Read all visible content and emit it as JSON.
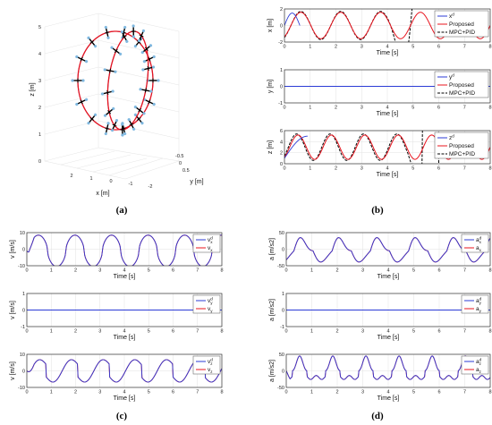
{
  "colors": {
    "reference": "#2b3bd6",
    "proposed": "#e8141e",
    "mpc": "#000000",
    "grid": "#e2e2e2"
  },
  "panel_labels": {
    "a": "(a)",
    "b": "(b)",
    "c": "(c)",
    "d": "(d)"
  },
  "legend_text": {
    "xd": "x",
    "yd": "y",
    "zd": "z",
    "proposed": "Proposed",
    "mpc": "MPC+PID",
    "vxd": "v",
    "vx": "v",
    "vyd": "v",
    "vy": "v",
    "vzd": "v",
    "vz": "v",
    "axd": "a",
    "ax": "a",
    "ayd": "a",
    "ay": "a",
    "azd": "a",
    "az": "a",
    "sup_d": "d",
    "sub_x": "x",
    "sub_y": "y",
    "sub_z": "z"
  },
  "chart_data": [
    {
      "id": "a",
      "type": "scatter",
      "note_3d": "3D trajectory with quadrotor poses",
      "xlabel": "x [m]",
      "ylabel": "y [m]",
      "zlabel": "z [m]",
      "x_ticks": [
        "-2",
        "-1",
        "0",
        "1",
        "2"
      ],
      "y_ticks": [
        "-0.5",
        "0",
        "0.5"
      ],
      "z_ticks": [
        "0",
        "1",
        "2",
        "3",
        "4",
        "5"
      ]
    },
    {
      "id": "b1",
      "type": "line",
      "xlabel": "Time [s]",
      "ylabel": "x [m]",
      "xlim": [
        0,
        8
      ],
      "ylim": [
        -2,
        2
      ],
      "x_ticks": [
        "0",
        "1",
        "2",
        "3",
        "4",
        "5",
        "6",
        "7",
        "8"
      ],
      "y_ticks": [
        "-2",
        "0",
        "2"
      ],
      "series": [
        {
          "name": "x",
          "role": "reference",
          "from": 0,
          "to": 0.6,
          "fn": "xref_start"
        },
        {
          "name": "Proposed",
          "role": "proposed",
          "from": 0,
          "to": 8,
          "fn": "sin_track",
          "amp": 1.6,
          "period": 1.55,
          "offset": 0
        },
        {
          "name": "MPC+PID",
          "role": "mpc",
          "from": 0,
          "to": 5.2,
          "fn": "mpc_diverge",
          "amp": 1.7,
          "period": 1.55
        }
      ]
    },
    {
      "id": "b2",
      "type": "line",
      "xlabel": "Time [s]",
      "ylabel": "y [m]",
      "xlim": [
        0,
        8
      ],
      "ylim": [
        -1,
        1
      ],
      "x_ticks": [
        "0",
        "1",
        "2",
        "3",
        "4",
        "5",
        "6",
        "7",
        "8"
      ],
      "y_ticks": [
        "-1",
        "0",
        "1"
      ],
      "series": [
        {
          "name": "y",
          "role": "reference",
          "from": 0,
          "to": 8,
          "fn": "flat"
        },
        {
          "name": "Proposed",
          "role": "proposed",
          "from": 0,
          "to": 8,
          "fn": "flat"
        },
        {
          "name": "MPC+PID",
          "role": "mpc",
          "from": 0,
          "to": 8,
          "fn": "flat"
        }
      ]
    },
    {
      "id": "b3",
      "type": "line",
      "xlabel": "Time [s]",
      "ylabel": "z [m]",
      "xlim": [
        0,
        8
      ],
      "ylim": [
        0,
        6
      ],
      "x_ticks": [
        "0",
        "1",
        "2",
        "3",
        "4",
        "5",
        "6",
        "7",
        "8"
      ],
      "y_ticks": [
        "0",
        "2",
        "4",
        "6"
      ],
      "series": [
        {
          "name": "z",
          "role": "reference",
          "from": 0,
          "to": 0.9,
          "fn": "zref_start"
        },
        {
          "name": "Proposed",
          "role": "proposed",
          "from": 0,
          "to": 8,
          "fn": "zwave"
        },
        {
          "name": "MPC+PID",
          "role": "mpc",
          "from": 0,
          "to": 6.2,
          "fn": "zmpc"
        }
      ]
    },
    {
      "id": "c1",
      "type": "line",
      "xlabel": "Time [s]",
      "ylabel": "v [m/s]",
      "xlim": [
        0,
        8
      ],
      "ylim": [
        -10,
        10
      ],
      "x_ticks": [
        "0",
        "1",
        "2",
        "3",
        "4",
        "5",
        "6",
        "7",
        "8"
      ],
      "y_ticks": [
        "-10",
        "0",
        "10"
      ],
      "series": [
        {
          "name": "v",
          "role": "reference",
          "fn": "vx"
        },
        {
          "name": "v",
          "role": "proposed",
          "fn": "vx"
        }
      ]
    },
    {
      "id": "c2",
      "type": "line",
      "xlabel": "Time [s]",
      "ylabel": "v [m/s]",
      "xlim": [
        0,
        8
      ],
      "ylim": [
        -1,
        1
      ],
      "x_ticks": [
        "0",
        "1",
        "2",
        "3",
        "4",
        "5",
        "6",
        "7",
        "8"
      ],
      "y_ticks": [
        "-1",
        "0",
        "1"
      ],
      "series": [
        {
          "name": "v",
          "role": "reference",
          "fn": "flat"
        },
        {
          "name": "v",
          "role": "proposed",
          "fn": "flat"
        }
      ]
    },
    {
      "id": "c3",
      "type": "line",
      "xlabel": "Time [s]",
      "ylabel": "v [m/s]",
      "xlim": [
        0,
        8
      ],
      "ylim": [
        -10,
        10
      ],
      "x_ticks": [
        "0",
        "1",
        "2",
        "3",
        "4",
        "5",
        "6",
        "7",
        "8"
      ],
      "y_ticks": [
        "-10",
        "0",
        "10"
      ],
      "series": [
        {
          "name": "v",
          "role": "reference",
          "fn": "vz"
        },
        {
          "name": "v",
          "role": "proposed",
          "fn": "vz"
        }
      ]
    },
    {
      "id": "d1",
      "type": "line",
      "xlabel": "Time [s]",
      "ylabel": "a [m/s2]",
      "xlim": [
        0,
        8
      ],
      "ylim": [
        -50,
        50
      ],
      "x_ticks": [
        "0",
        "1",
        "2",
        "3",
        "4",
        "5",
        "6",
        "7",
        "8"
      ],
      "y_ticks": [
        "-50",
        "0",
        "50"
      ],
      "series": [
        {
          "name": "a",
          "role": "reference",
          "fn": "ax"
        },
        {
          "name": "a",
          "role": "proposed",
          "fn": "ax"
        }
      ]
    },
    {
      "id": "d2",
      "type": "line",
      "xlabel": "Time [s]",
      "ylabel": "a [m/s2]",
      "xlim": [
        0,
        8
      ],
      "ylim": [
        -1,
        1
      ],
      "x_ticks": [
        "0",
        "1",
        "2",
        "3",
        "4",
        "5",
        "6",
        "7",
        "8"
      ],
      "y_ticks": [
        "-1",
        "0",
        "1"
      ],
      "series": [
        {
          "name": "a",
          "role": "reference",
          "fn": "flat"
        },
        {
          "name": "a",
          "role": "proposed",
          "fn": "flat"
        }
      ]
    },
    {
      "id": "d3",
      "type": "line",
      "xlabel": "Time [s]",
      "ylabel": "a [m/s2]",
      "xlim": [
        0,
        8
      ],
      "ylim": [
        -50,
        50
      ],
      "x_ticks": [
        "0",
        "1",
        "2",
        "3",
        "4",
        "5",
        "6",
        "7",
        "8"
      ],
      "y_ticks": [
        "-50",
        "0",
        "50"
      ],
      "series": [
        {
          "name": "a",
          "role": "reference",
          "fn": "az"
        },
        {
          "name": "a",
          "role": "proposed",
          "fn": "az"
        }
      ]
    }
  ]
}
